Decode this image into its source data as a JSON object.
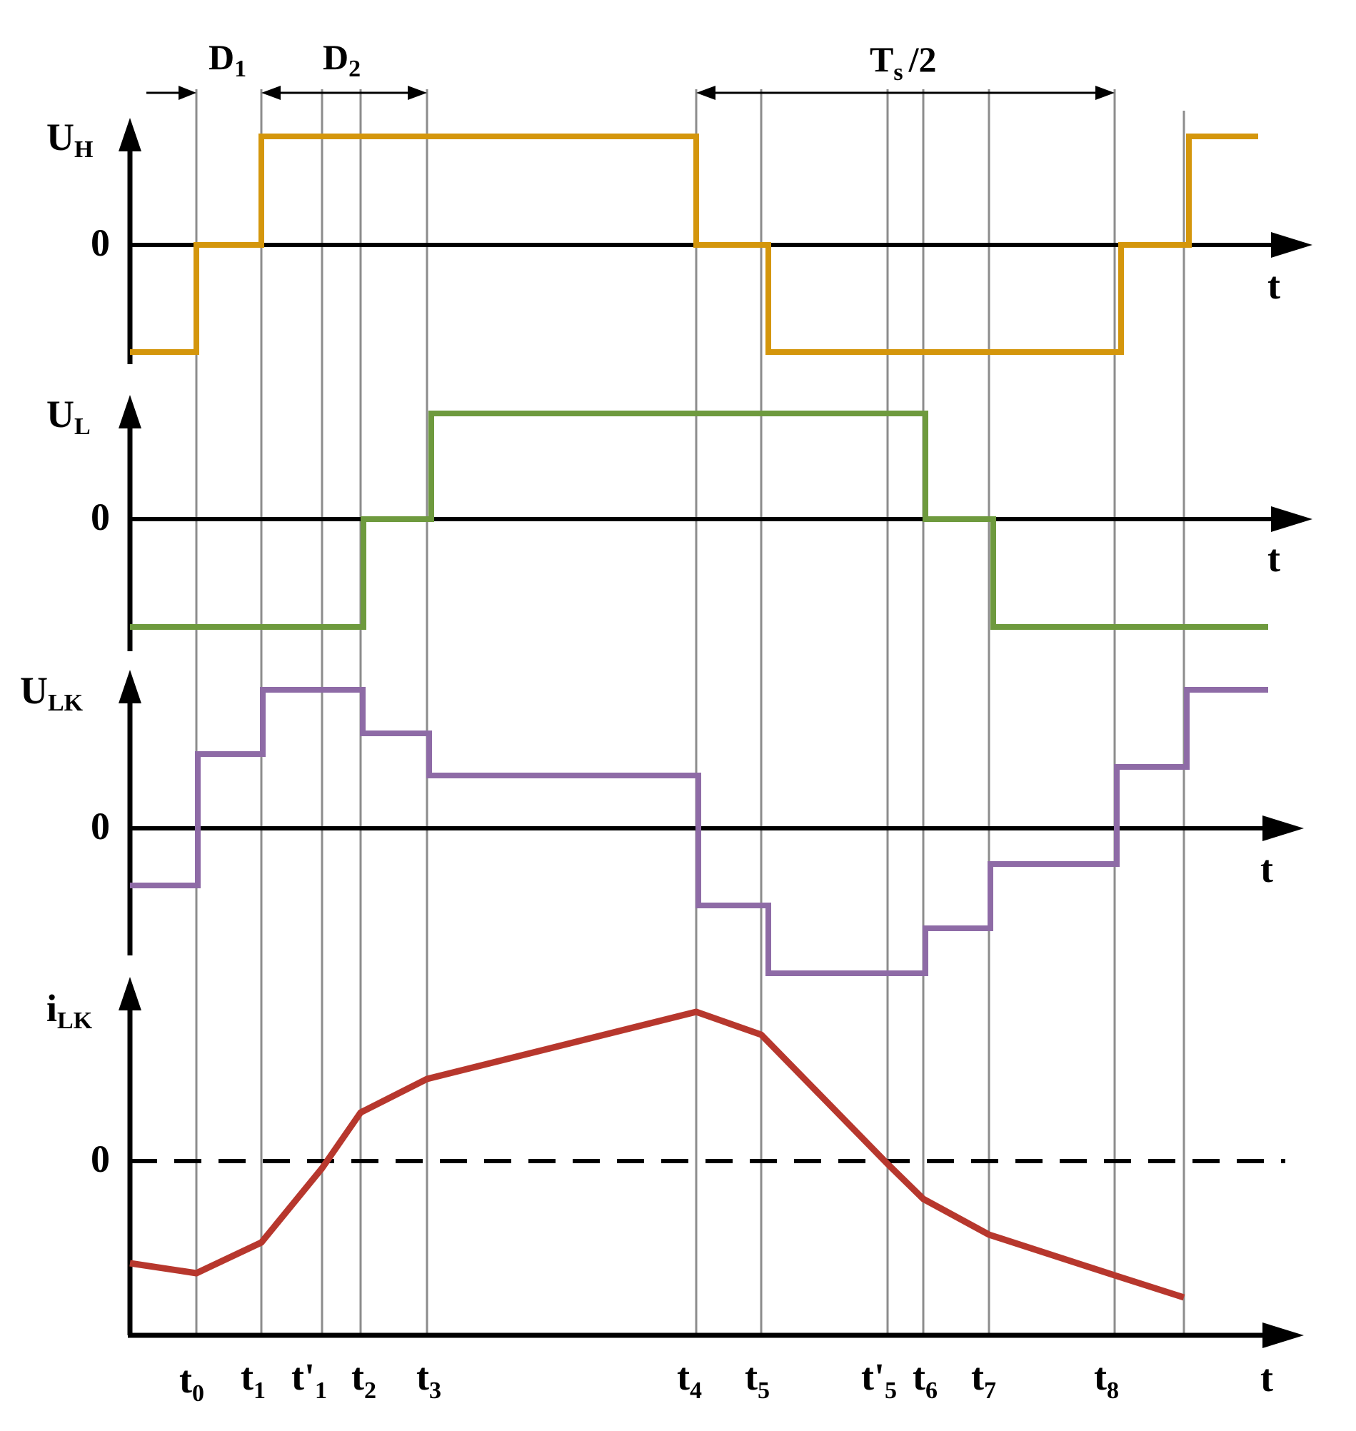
{
  "colors": {
    "uh": "#d4960c",
    "ul": "#6e9a3e",
    "ulk": "#8e6ba6",
    "ilk": "#b7372d",
    "axis": "#000000",
    "grid": "#8c8c8c"
  },
  "annotations": {
    "d1": {
      "main": "D",
      "sub": "1"
    },
    "d2": {
      "main": "D",
      "sub": "2"
    },
    "ts": {
      "main": "T",
      "sub": "s",
      "suffix": "/2"
    }
  },
  "panels": {
    "uh": {
      "label_main": "U",
      "label_sub": "H",
      "zero": "0",
      "t": "t"
    },
    "ul": {
      "label_main": "U",
      "label_sub": "L",
      "zero": "0",
      "t": "t"
    },
    "ulk": {
      "label_main": "U",
      "label_sub": "LK",
      "zero": "0",
      "t": "t"
    },
    "ilk": {
      "label_main": "i",
      "label_sub": "LK",
      "zero": "0",
      "t": "t"
    }
  },
  "time_labels": [
    {
      "main": "t",
      "sub": "0"
    },
    {
      "main": "t",
      "sub": "1"
    },
    {
      "main": "t'",
      "sub": "1"
    },
    {
      "main": "t",
      "sub": "2"
    },
    {
      "main": "t",
      "sub": "3"
    },
    {
      "main": "t",
      "sub": "4"
    },
    {
      "main": "t",
      "sub": "5"
    },
    {
      "main": "t'",
      "sub": "5"
    },
    {
      "main": "t",
      "sub": "6"
    },
    {
      "main": "t",
      "sub": "7"
    },
    {
      "main": "t",
      "sub": "8"
    }
  ]
}
